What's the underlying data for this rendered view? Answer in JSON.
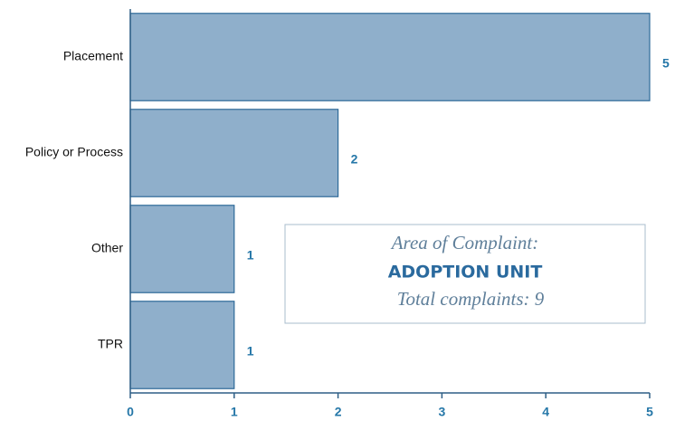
{
  "chart_data": {
    "type": "bar",
    "orientation": "horizontal",
    "categories": [
      "Placement",
      "Policy or Process",
      "Other",
      "TPR"
    ],
    "values": [
      5,
      2,
      1,
      1
    ],
    "color": "#8fafcb",
    "xlim": [
      0,
      5
    ],
    "xticks": [
      0,
      1,
      2,
      3,
      4,
      5
    ],
    "annotations": [
      "Area of Complaint:",
      "ADOPTION UNIT",
      "Total complaints: 9"
    ]
  }
}
